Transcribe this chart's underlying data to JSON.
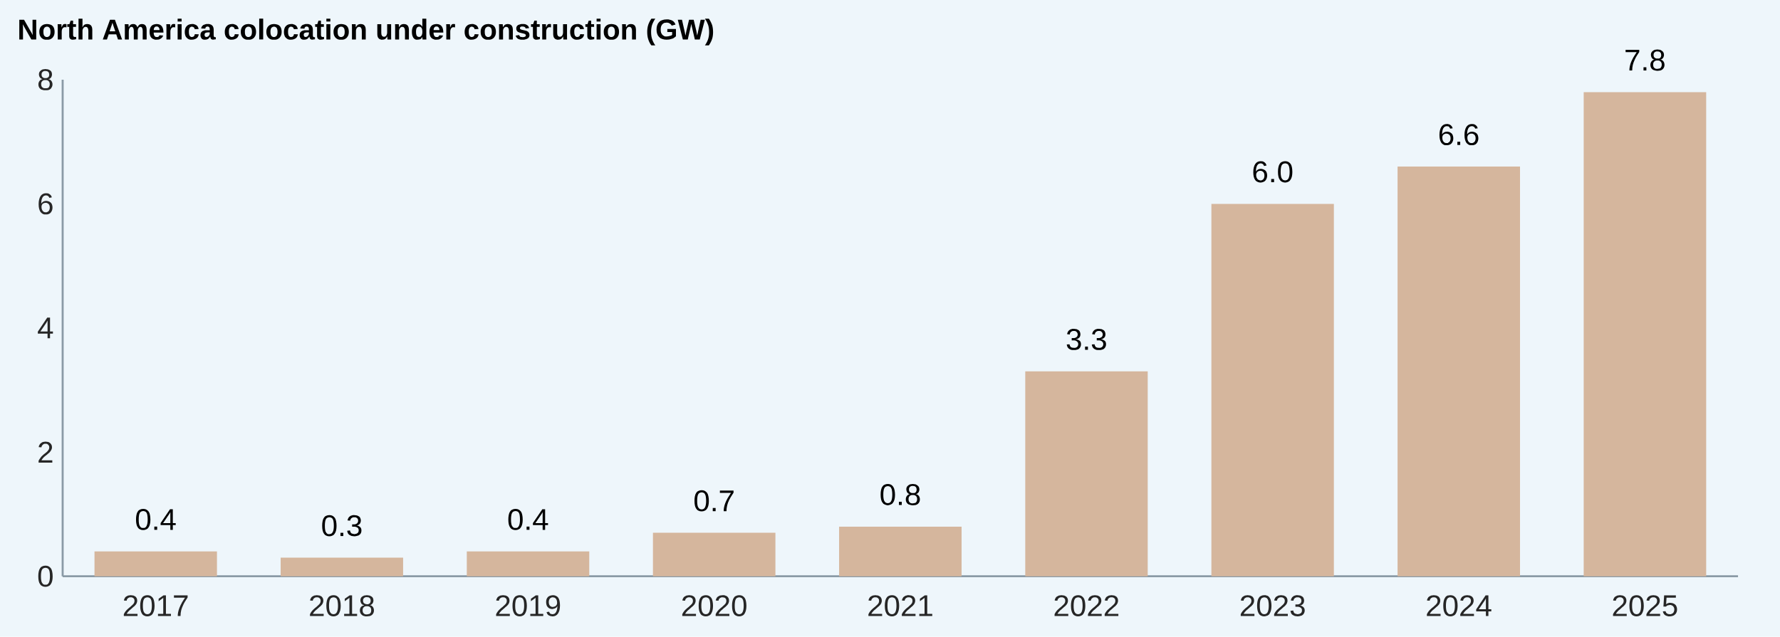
{
  "chart_data": {
    "type": "bar",
    "title": "North America colocation under construction (GW)",
    "categories": [
      "2017",
      "2018",
      "2019",
      "2020",
      "2021",
      "2022",
      "2023",
      "2024",
      "2025"
    ],
    "values": [
      0.4,
      0.3,
      0.4,
      0.7,
      0.8,
      3.3,
      6.0,
      6.6,
      7.8
    ],
    "value_labels": [
      "0.4",
      "0.3",
      "0.4",
      "0.7",
      "0.8",
      "3.3",
      "6.0",
      "6.6",
      "7.8"
    ],
    "color": "#d5b69d",
    "ylim": [
      0,
      8
    ],
    "yticks": [
      0,
      2,
      4,
      6,
      8
    ]
  }
}
